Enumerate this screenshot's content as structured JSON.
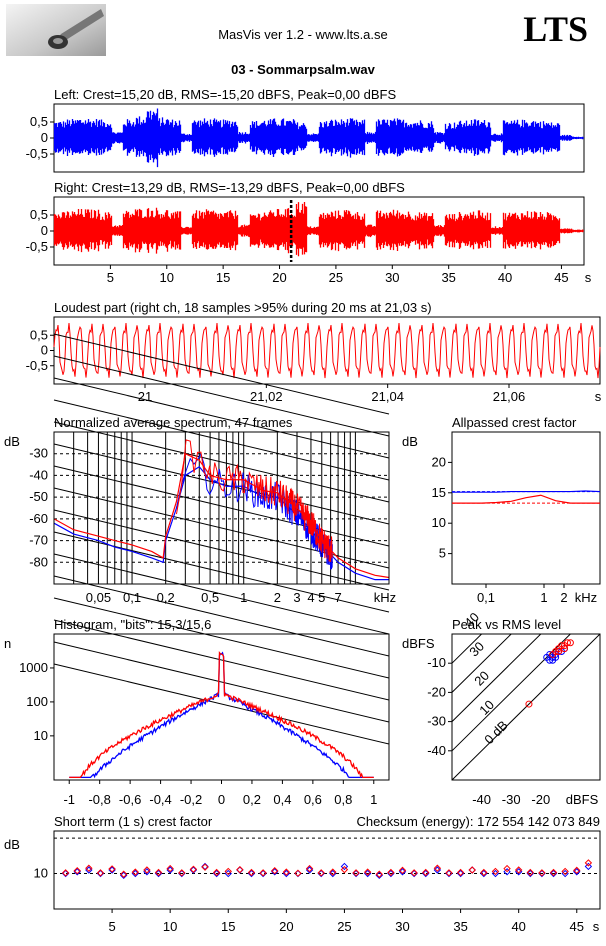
{
  "header": {
    "app_title": "MasVis ver 1.2 - www.lts.a.se",
    "brand": "LTS",
    "file_name": "03 - Sommarpsalm.wav"
  },
  "colors": {
    "left": "#0000ff",
    "right": "#ff0000",
    "grid": "#000000"
  },
  "chart_data": [
    {
      "id": "left_wave",
      "type": "area",
      "title": "Left: Crest=15,20 dB, RMS=-15,20 dBFS, Peak=0,00 dBFS",
      "yticks": [
        "0,5",
        "0",
        "-0,5"
      ],
      "ylim": [
        -1,
        1
      ],
      "xlim": [
        0,
        47
      ],
      "series": [
        {
          "color": "#0000ff",
          "envelope": [
            0.55,
            0.6,
            0.65,
            0.62,
            0.58,
            0.2,
            0.6,
            0.7,
            0.95,
            0.65,
            0.6,
            0.15,
            0.6,
            0.62,
            0.58,
            0.6,
            0.2,
            0.55,
            0.6,
            0.62,
            0.6,
            0.5,
            0.15,
            0.55,
            0.6,
            0.62,
            0.58,
            0.2,
            0.6,
            0.62,
            0.6,
            0.58,
            0.55,
            0.2,
            0.5,
            0.55,
            0.6,
            0.58,
            0.15,
            0.55,
            0.58,
            0.6,
            0.55,
            0.5,
            0.1,
            0.05,
            0.05
          ]
        }
      ]
    },
    {
      "id": "right_wave",
      "type": "area",
      "title": "Right: Crest=13,29 dB, RMS=-13,29 dBFS, Peak=0,00 dBFS",
      "yticks": [
        "0,5",
        "0",
        "-0,5"
      ],
      "xlabel": "s",
      "xticks": [
        "5",
        "10",
        "15",
        "20",
        "25",
        "30",
        "35",
        "40",
        "45"
      ],
      "xlim": [
        0,
        47
      ],
      "marker_at_s": 21.03,
      "series": [
        {
          "color": "#ff0000",
          "envelope": [
            0.6,
            0.65,
            0.7,
            0.68,
            0.6,
            0.2,
            0.65,
            0.72,
            0.75,
            0.7,
            0.62,
            0.15,
            0.65,
            0.68,
            0.62,
            0.65,
            0.2,
            0.6,
            0.65,
            0.7,
            0.72,
            0.95,
            0.15,
            0.6,
            0.65,
            0.7,
            0.62,
            0.2,
            0.65,
            0.68,
            0.65,
            0.6,
            0.58,
            0.2,
            0.55,
            0.6,
            0.65,
            0.6,
            0.15,
            0.6,
            0.62,
            0.65,
            0.6,
            0.55,
            0.1,
            0.05,
            0.05
          ]
        }
      ]
    },
    {
      "id": "loudest",
      "type": "line",
      "title": "Loudest part (right ch, 18 samples >95% during 20 ms at 21,03 s)",
      "yticks": [
        "0,5",
        "0",
        "-0,5"
      ],
      "xlabel": "s",
      "xticks": [
        "21",
        "21,02",
        "21,04",
        "21,06"
      ],
      "xlim": [
        20.985,
        21.075
      ],
      "cycles": 48
    },
    {
      "id": "spectrum",
      "type": "line",
      "title": "Normalized average spectrum, 47 frames",
      "ylabel": "dB",
      "xlabel": "kHz",
      "yticks": [
        "-30",
        "-40",
        "-50",
        "-60",
        "-70",
        "-80"
      ],
      "xticks": [
        "0,05",
        "0,1",
        "0,2",
        "0,5",
        "1",
        "2",
        "3",
        "4",
        "5",
        "7"
      ],
      "xlim_khz": [
        0.02,
        20
      ],
      "ylim_db": [
        -90,
        -20
      ],
      "series": [
        {
          "name": "",
          "color": "#0000ff",
          "points": [
            [
              0.02,
              -62
            ],
            [
              0.03,
              -67
            ],
            [
              0.05,
              -70
            ],
            [
              0.07,
              -73
            ],
            [
              0.1,
              -75
            ],
            [
              0.15,
              -78
            ],
            [
              0.19,
              -80
            ],
            [
              0.2,
              -70
            ],
            [
              0.25,
              -55
            ],
            [
              0.3,
              -40
            ],
            [
              0.4,
              -36
            ],
            [
              0.5,
              -42
            ],
            [
              0.7,
              -45
            ],
            [
              1,
              -45
            ],
            [
              1.5,
              -50
            ],
            [
              2,
              -50
            ],
            [
              3,
              -58
            ],
            [
              4,
              -65
            ],
            [
              5,
              -72
            ],
            [
              7,
              -80
            ],
            [
              10,
              -85
            ],
            [
              15,
              -88
            ],
            [
              20,
              -88
            ]
          ]
        },
        {
          "name": "",
          "color": "#ff0000",
          "points": [
            [
              0.02,
              -60
            ],
            [
              0.03,
              -65
            ],
            [
              0.05,
              -68
            ],
            [
              0.07,
              -70
            ],
            [
              0.1,
              -72
            ],
            [
              0.15,
              -75
            ],
            [
              0.19,
              -78
            ],
            [
              0.2,
              -68
            ],
            [
              0.25,
              -52
            ],
            [
              0.3,
              -30
            ],
            [
              0.4,
              -33
            ],
            [
              0.5,
              -40
            ],
            [
              0.7,
              -42
            ],
            [
              1,
              -42
            ],
            [
              1.5,
              -47
            ],
            [
              2,
              -48
            ],
            [
              3,
              -55
            ],
            [
              4,
              -62
            ],
            [
              5,
              -70
            ],
            [
              7,
              -78
            ],
            [
              10,
              -83
            ],
            [
              15,
              -86
            ],
            [
              20,
              -87
            ]
          ]
        }
      ]
    },
    {
      "id": "allpass",
      "type": "line",
      "title": "Allpassed crest factor",
      "ylabel": "dB",
      "xlabel": "kHz",
      "yticks": [
        "20",
        "15",
        "10",
        "5"
      ],
      "xticks": [
        "0,1",
        "1",
        "2"
      ],
      "ylim": [
        0,
        25
      ],
      "series": [
        {
          "color": "#0000ff",
          "values": [
            15.1,
            15.1,
            15.1,
            15.1,
            15.2,
            15.2,
            15.2,
            15.2,
            15.2,
            15.3,
            15.2
          ]
        },
        {
          "color": "#ff0000",
          "values": [
            13.3,
            13.3,
            13.3,
            13.4,
            13.6,
            14.2,
            14.6,
            13.7,
            13.3,
            13.3,
            13.3
          ]
        }
      ],
      "ref_lines": [
        {
          "color": "#0000ff",
          "value": 15.2
        },
        {
          "color": "#ff0000",
          "value": 13.3
        }
      ]
    },
    {
      "id": "histogram",
      "type": "line",
      "title": "Histogram, \"bits\": 15,3/15,6",
      "ylabel": "n",
      "yticks": [
        "1000",
        "100",
        "10"
      ],
      "xticks": [
        "-1",
        "-0,8",
        "-0,6",
        "-0,4",
        "-0,2",
        "0",
        "0,2",
        "0,4",
        "0,6",
        "0,8",
        "1"
      ],
      "xlim": [
        -1.1,
        1.1
      ],
      "ylog": true
    },
    {
      "id": "peak_rms",
      "type": "scatter",
      "title": "Peak vs RMS level",
      "ylabel": "dBFS",
      "xlabel": "dBFS",
      "yticks": [
        "-10",
        "-20",
        "-30",
        "-40"
      ],
      "xticks": [
        "-40",
        "-30",
        "-20"
      ],
      "diag_labels": [
        "40",
        "30",
        "20",
        "10",
        "0 dB"
      ],
      "series": [
        {
          "color": "#0000ff",
          "points": [
            [
              -18,
              -8
            ],
            [
              -17,
              -9
            ],
            [
              -16,
              -8
            ],
            [
              -15,
              -7
            ],
            [
              -14,
              -6
            ],
            [
              -13,
              -6
            ],
            [
              -15,
              -8
            ],
            [
              -17,
              -7
            ],
            [
              -12,
              -5
            ],
            [
              -16,
              -9
            ]
          ]
        },
        {
          "color": "#ff0000",
          "points": [
            [
              -16,
              -7
            ],
            [
              -15,
              -6
            ],
            [
              -14,
              -5
            ],
            [
              -13,
              -4
            ],
            [
              -12,
              -4
            ],
            [
              -11,
              -3
            ],
            [
              -10,
              -3
            ],
            [
              -14,
              -6
            ],
            [
              -12,
              -5
            ],
            [
              -24,
              -24
            ]
          ]
        }
      ]
    },
    {
      "id": "short_crest",
      "type": "scatter",
      "title": "Short term (1 s) crest factor",
      "checksum_label": "Checksum (energy):",
      "checksum_value": "172 554 142 073 849",
      "ylabel": "dB",
      "yticks": [
        "10"
      ],
      "xlabel": "s",
      "xticks": [
        "5",
        "10",
        "15",
        "20",
        "25",
        "30",
        "35",
        "40",
        "45"
      ],
      "xlim": [
        0,
        47
      ],
      "ylim": [
        0,
        22
      ],
      "series": [
        {
          "color": "#0000ff",
          "values": [
            10,
            10.5,
            11,
            10,
            11,
            9.5,
            10,
            10.5,
            10,
            11,
            10,
            11,
            12,
            10,
            10,
            11,
            10,
            10,
            10.5,
            10,
            10,
            11,
            10,
            10,
            12,
            10,
            10,
            9.5,
            10,
            10.5,
            10,
            10,
            11,
            10,
            10,
            11,
            10,
            10,
            10.5,
            10.5,
            10,
            10,
            10,
            10,
            10.5,
            12
          ]
        },
        {
          "color": "#ff0000",
          "values": [
            10.2,
            10.8,
            11.5,
            10.2,
            11.3,
            9.8,
            10.4,
            11,
            10.3,
            11.4,
            10.2,
            11.2,
            11.8,
            10.3,
            10.6,
            11.1,
            10.3,
            10.2,
            10.8,
            10.4,
            10.1,
            11.4,
            10.2,
            10.4,
            11.1,
            10.2,
            10.4,
            9.8,
            10.3,
            10.9,
            10.2,
            10.3,
            11.5,
            10.2,
            10.3,
            11,
            10.3,
            10.6,
            11.4,
            11,
            10.3,
            10.2,
            10.3,
            10.6,
            10.9,
            13
          ]
        }
      ]
    }
  ]
}
